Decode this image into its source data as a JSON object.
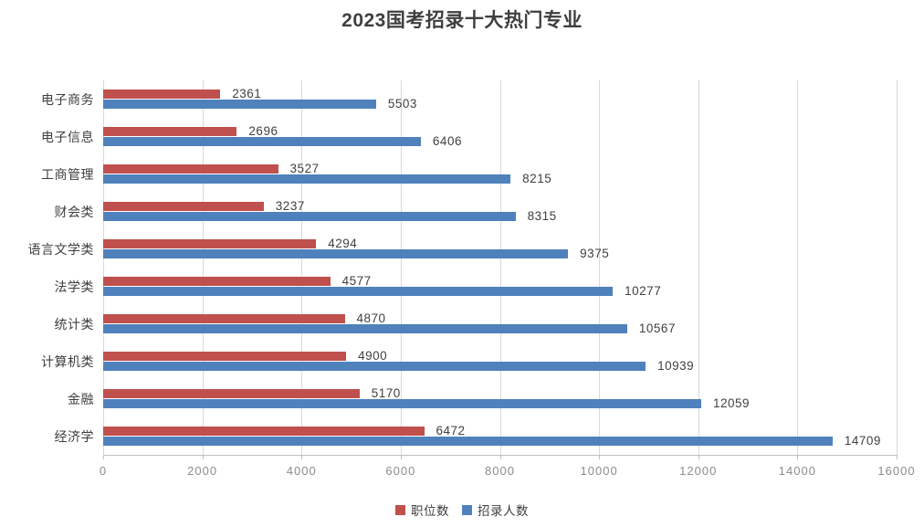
{
  "title": "2023国考招录十大热门专业",
  "colors": {
    "positions_red": "#C0504D",
    "recruits_blue": "#4F81BD",
    "gridline": "#D9D9D9",
    "axis_line": "#BFBFBF",
    "title_text": "#3F3F3F",
    "data_label_text": "#404040",
    "tick_text": "#8C8C8C"
  },
  "legend": [
    {
      "label": "职位数",
      "color": "#C0504D"
    },
    {
      "label": "招录人数",
      "color": "#4F81BD"
    }
  ],
  "chart_data": {
    "type": "bar",
    "orientation": "horizontal",
    "title": "2023国考招录十大热门专业",
    "categories": [
      "电子商务",
      "电子信息",
      "工商管理",
      "财会类",
      "语言文学类",
      "法学类",
      "统计类",
      "计算机类",
      "金融",
      "经济学"
    ],
    "series": [
      {
        "name": "职位数",
        "color": "#C0504D",
        "values": [
          2361,
          2696,
          3527,
          3237,
          4294,
          4577,
          4870,
          4900,
          5170,
          6472
        ]
      },
      {
        "name": "招录人数",
        "color": "#4F81BD",
        "values": [
          5503,
          6406,
          8215,
          8315,
          9375,
          10277,
          10567,
          10939,
          12059,
          14709
        ]
      }
    ],
    "xlabel": "",
    "ylabel": "",
    "xlim": [
      0,
      16000
    ],
    "x_ticks": [
      0,
      2000,
      4000,
      6000,
      8000,
      10000,
      12000,
      14000,
      16000
    ],
    "grid": true,
    "data_labels": true,
    "legend_position": "bottom"
  }
}
